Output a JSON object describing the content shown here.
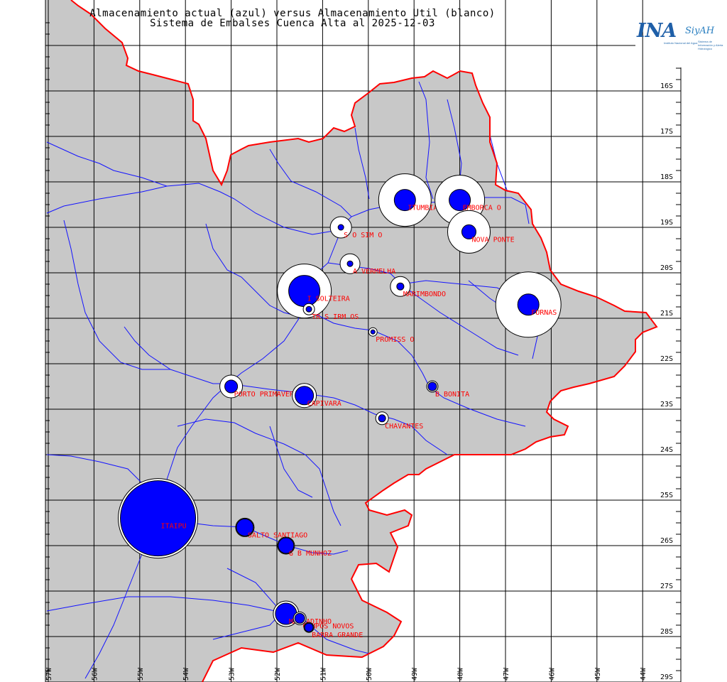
{
  "title": {
    "line1": "Almacenamiento actual (azul) versus Almacenamiento Util (blanco)",
    "line2": "Sistema de Embalses Cuenca Alta al 2025-12-03"
  },
  "logo": {
    "name": "INA",
    "product": "SiyAH",
    "institution": "Instituto Nacional del Agua",
    "system": "Sistema de Información y Alerta Hidrológico"
  },
  "axes": {
    "lon_labels": [
      "57W",
      "56W",
      "55W",
      "54W",
      "53W",
      "52W",
      "51W",
      "50W",
      "49W",
      "48W",
      "47W",
      "46W",
      "45W",
      "44W"
    ],
    "lat_labels": [
      "16S",
      "17S",
      "18S",
      "19S",
      "20S",
      "21S",
      "22S",
      "23S",
      "24S",
      "25S",
      "26S",
      "27S",
      "28S",
      "29S"
    ]
  },
  "colors": {
    "land": "#c8c8c8",
    "river": "#1414ff",
    "border": "#ff0000",
    "storage_actual": "#0000ff",
    "storage_util": "#ffffff",
    "label": "#ff0000"
  },
  "reservoirs": [
    {
      "name": "ITUMBIARA",
      "lon": -49.2,
      "lat": -18.4,
      "util_r": 37,
      "actual_r": 15
    },
    {
      "name": "EMBORCA O",
      "lon": -48.0,
      "lat": -18.4,
      "util_r": 35,
      "actual_r": 15
    },
    {
      "name": "NOVA PONTE",
      "lon": -47.8,
      "lat": -19.1,
      "util_r": 30,
      "actual_r": 10
    },
    {
      "name": "S O SIM O",
      "lon": -50.6,
      "lat": -19.0,
      "util_r": 15,
      "actual_r": 4
    },
    {
      "name": "A VERMELHA",
      "lon": -50.4,
      "lat": -19.8,
      "util_r": 14,
      "actual_r": 4
    },
    {
      "name": "MARIMBONDO",
      "lon": -49.3,
      "lat": -20.3,
      "util_r": 14,
      "actual_r": 5
    },
    {
      "name": "FURNAS",
      "lon": -46.5,
      "lat": -20.7,
      "util_r": 46,
      "actual_r": 15
    },
    {
      "name": "I SOLTEIRA",
      "lon": -51.4,
      "lat": -20.4,
      "util_r": 38,
      "actual_r": 22
    },
    {
      "name": "TR S IRM OS",
      "lon": -51.3,
      "lat": -20.8,
      "util_r": 8,
      "actual_r": 4
    },
    {
      "name": "PROMISS O",
      "lon": -49.9,
      "lat": -21.3,
      "util_r": 6,
      "actual_r": 3
    },
    {
      "name": "B BONITA",
      "lon": -48.6,
      "lat": -22.5,
      "util_r": 8,
      "actual_r": 6
    },
    {
      "name": "PORTO PRIMAVERA",
      "lon": -53.0,
      "lat": -22.5,
      "util_r": 16,
      "actual_r": 9
    },
    {
      "name": "CAPIVARA",
      "lon": -51.4,
      "lat": -22.7,
      "util_r": 17,
      "actual_r": 13
    },
    {
      "name": "CHAVANTES",
      "lon": -49.7,
      "lat": -23.2,
      "util_r": 9,
      "actual_r": 5
    },
    {
      "name": "ITAIPU",
      "lon": -54.6,
      "lat": -25.4,
      "util_r": 56,
      "actual_r": 53
    },
    {
      "name": "SALTO SANTIAGO",
      "lon": -52.7,
      "lat": -25.6,
      "util_r": 13,
      "actual_r": 12
    },
    {
      "name": "G B MUNHOZ",
      "lon": -51.8,
      "lat": -26.0,
      "util_r": 12,
      "actual_r": 11
    },
    {
      "name": "MACHADINHO",
      "lon": -51.8,
      "lat": -27.5,
      "util_r": 18,
      "actual_r": 15
    },
    {
      "name": "CAMPOS NOVOS",
      "lon": -51.5,
      "lat": -27.6,
      "util_r": 9,
      "actual_r": 7
    },
    {
      "name": "BARRA GRANDE",
      "lon": -51.3,
      "lat": -27.8,
      "util_r": 7,
      "actual_r": 6
    }
  ]
}
